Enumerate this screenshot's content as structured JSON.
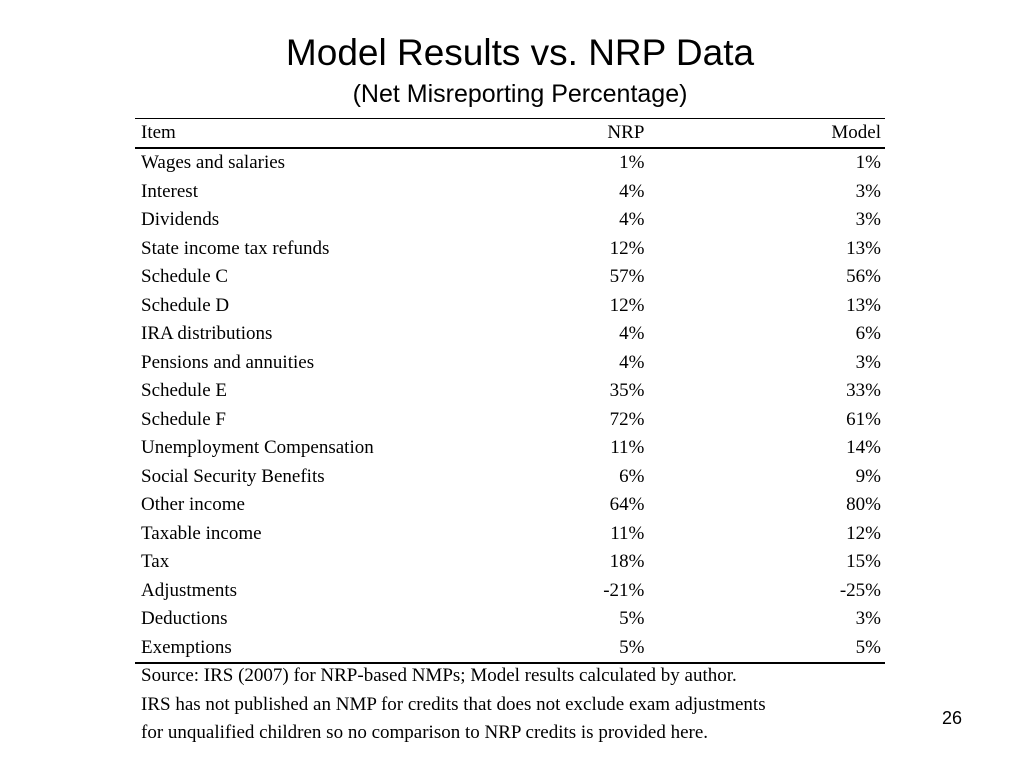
{
  "slide": {
    "title": "Model Results vs. NRP Data",
    "subtitle": "(Net Misreporting Percentage)",
    "page_number": "26"
  },
  "table": {
    "headers": {
      "item": "Item",
      "nrp": "NRP",
      "model": "Model"
    },
    "rows": [
      {
        "item": "Wages and salaries",
        "nrp": "1%",
        "model": "1%"
      },
      {
        "item": "Interest",
        "nrp": "4%",
        "model": "3%"
      },
      {
        "item": "Dividends",
        "nrp": "4%",
        "model": "3%"
      },
      {
        "item": "State income tax refunds",
        "nrp": "12%",
        "model": "13%"
      },
      {
        "item": "Schedule C",
        "nrp": "57%",
        "model": "56%"
      },
      {
        "item": "Schedule D",
        "nrp": "12%",
        "model": "13%"
      },
      {
        "item": "IRA distributions",
        "nrp": "4%",
        "model": "6%"
      },
      {
        "item": "Pensions and annuities",
        "nrp": "4%",
        "model": "3%"
      },
      {
        "item": "Schedule E",
        "nrp": "35%",
        "model": "33%"
      },
      {
        "item": "Schedule F",
        "nrp": "72%",
        "model": "61%"
      },
      {
        "item": "Unemployment Compensation",
        "nrp": "11%",
        "model": "14%"
      },
      {
        "item": "Social Security Benefits",
        "nrp": "6%",
        "model": "9%"
      },
      {
        "item": "Other income",
        "nrp": "64%",
        "model": "80%"
      },
      {
        "item": "Taxable income",
        "nrp": "11%",
        "model": "12%"
      },
      {
        "item": "Tax",
        "nrp": "18%",
        "model": "15%"
      },
      {
        "item": "Adjustments",
        "nrp": "-21%",
        "model": "-25%"
      },
      {
        "item": "Deductions",
        "nrp": "5%",
        "model": "3%"
      },
      {
        "item": "Exemptions",
        "nrp": "5%",
        "model": "5%"
      }
    ]
  },
  "notes": [
    "Source: IRS (2007) for NRP-based NMPs; Model results calculated by author.",
    "IRS has not published an NMP for credits that does not exclude exam adjustments",
    "for unqualified children so no comparison to NRP credits is provided here."
  ]
}
